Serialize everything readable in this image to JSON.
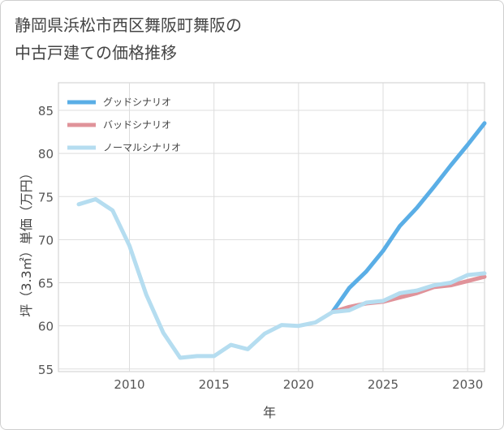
{
  "title_line1": "静岡県浜松市西区舞阪町舞阪の",
  "title_line2": "中古戸建ての価格推移",
  "chart_data": {
    "type": "line",
    "title": "静岡県浜松市西区舞阪町舞阪の中古戸建ての価格推移",
    "xlabel": "年",
    "ylabel": "坪（3.3㎡）単価（万円）",
    "xlim": [
      2005.8,
      2031
    ],
    "ylim": [
      54.7,
      88.2
    ],
    "xticks": [
      2010,
      2015,
      2020,
      2025,
      2030
    ],
    "yticks": [
      55,
      60,
      65,
      70,
      75,
      80,
      85
    ],
    "grid": true,
    "legend_position": "top-left",
    "series": [
      {
        "name": "グッドシナリオ",
        "color": "#5aaee6",
        "x": [
          2022,
          2023,
          2024,
          2025,
          2026,
          2027,
          2028,
          2029,
          2030,
          2031
        ],
        "values": [
          61.6,
          64.4,
          66.3,
          68.7,
          71.6,
          73.7,
          76.1,
          78.6,
          81.0,
          83.5
        ]
      },
      {
        "name": "バッドシナリオ",
        "color": "#e0939a",
        "x": [
          2022,
          2023,
          2024,
          2025,
          2026,
          2027,
          2028,
          2029,
          2030,
          2031
        ],
        "values": [
          61.6,
          62.2,
          62.6,
          62.8,
          63.3,
          63.8,
          64.5,
          64.7,
          65.2,
          65.7
        ]
      },
      {
        "name": "ノーマルシナリオ",
        "color": "#b5ddf0",
        "x": [
          2007,
          2008,
          2009,
          2010,
          2011,
          2012,
          2013,
          2014,
          2015,
          2016,
          2017,
          2018,
          2019,
          2020,
          2021,
          2022,
          2023,
          2024,
          2025,
          2026,
          2027,
          2028,
          2029,
          2030,
          2031
        ],
        "values": [
          74.1,
          74.7,
          73.4,
          69.3,
          63.6,
          59.2,
          56.3,
          56.5,
          56.5,
          57.8,
          57.3,
          59.1,
          60.1,
          60.0,
          60.4,
          61.6,
          61.8,
          62.7,
          62.9,
          63.8,
          64.1,
          64.7,
          65.0,
          65.9,
          66.1
        ]
      }
    ]
  }
}
